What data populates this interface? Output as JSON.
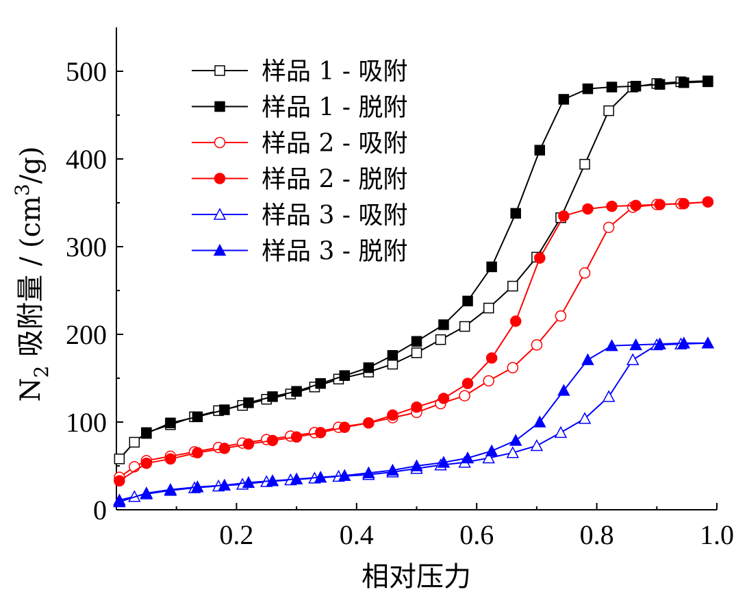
{
  "chart_data": {
    "type": "line",
    "xlabel": "相对压力",
    "ylabel_main": "N",
    "ylabel_sub": "2",
    "ylabel_rest": " 吸附量 / (cm",
    "ylabel_sup": "3",
    "ylabel_end": "/g)",
    "xlim": [
      0,
      1.0
    ],
    "ylim": [
      0,
      550
    ],
    "xticks": [
      0.2,
      0.4,
      0.6,
      0.8,
      1.0
    ],
    "xtick_labels": [
      "0.2",
      "0.4",
      "0.6",
      "0.8",
      "1.0"
    ],
    "yticks": [
      0,
      100,
      200,
      300,
      400,
      500
    ],
    "ytick_labels": [
      "0",
      "100",
      "200",
      "300",
      "400",
      "500"
    ],
    "grid": false,
    "legend_position": "top-left",
    "series": [
      {
        "name": "样品 1 - 吸附",
        "color": "#000000",
        "marker": "square",
        "filled": false,
        "x": [
          0.005,
          0.03,
          0.05,
          0.09,
          0.13,
          0.17,
          0.21,
          0.25,
          0.29,
          0.33,
          0.37,
          0.42,
          0.46,
          0.5,
          0.54,
          0.58,
          0.62,
          0.66,
          0.7,
          0.74,
          0.78,
          0.82,
          0.86,
          0.9,
          0.94,
          0.985
        ],
        "y": [
          58,
          77,
          88,
          97,
          106,
          113,
          119,
          126,
          132,
          140,
          149,
          157,
          166,
          179,
          194,
          209,
          230,
          255,
          288,
          333,
          394,
          455,
          482,
          486,
          488,
          489
        ]
      },
      {
        "name": "样品 1 - 脱附",
        "color": "#000000",
        "marker": "square",
        "filled": true,
        "x": [
          0.985,
          0.945,
          0.905,
          0.865,
          0.825,
          0.785,
          0.745,
          0.705,
          0.665,
          0.625,
          0.585,
          0.545,
          0.5,
          0.46,
          0.42,
          0.38,
          0.34,
          0.3,
          0.26,
          0.22,
          0.18,
          0.135,
          0.09,
          0.05
        ],
        "y": [
          488,
          487,
          485,
          483,
          482,
          480,
          468,
          410,
          338,
          277,
          238,
          211,
          192,
          176,
          162,
          153,
          144,
          135,
          129,
          122,
          114,
          106,
          99,
          87
        ]
      },
      {
        "name": "样品 2 - 吸附",
        "color": "#ff0000",
        "marker": "circle",
        "filled": false,
        "x": [
          0.005,
          0.03,
          0.05,
          0.09,
          0.13,
          0.17,
          0.21,
          0.25,
          0.29,
          0.33,
          0.37,
          0.42,
          0.46,
          0.5,
          0.54,
          0.58,
          0.62,
          0.66,
          0.7,
          0.74,
          0.78,
          0.82,
          0.86,
          0.9,
          0.94,
          0.985
        ],
        "y": [
          37,
          49,
          56,
          61,
          66,
          71,
          76,
          80,
          84,
          88,
          94,
          99,
          105,
          111,
          121,
          130,
          147,
          162,
          188,
          221,
          270,
          322,
          345,
          348,
          349,
          351
        ]
      },
      {
        "name": "样品 2 - 脱附",
        "color": "#ff0000",
        "marker": "circle",
        "filled": true,
        "x": [
          0.985,
          0.945,
          0.905,
          0.865,
          0.825,
          0.785,
          0.745,
          0.705,
          0.665,
          0.625,
          0.585,
          0.545,
          0.5,
          0.46,
          0.42,
          0.38,
          0.34,
          0.3,
          0.26,
          0.22,
          0.18,
          0.135,
          0.09,
          0.05,
          0.005
        ],
        "y": [
          351,
          349,
          348,
          347,
          346,
          343,
          335,
          287,
          215,
          173,
          144,
          127,
          117,
          108,
          99,
          94,
          88,
          83,
          79,
          75,
          70,
          65,
          58,
          53,
          33
        ]
      },
      {
        "name": "样品 3 - 吸附",
        "color": "#0000ff",
        "marker": "triangle",
        "filled": false,
        "x": [
          0.005,
          0.03,
          0.05,
          0.09,
          0.13,
          0.17,
          0.21,
          0.25,
          0.29,
          0.33,
          0.37,
          0.42,
          0.46,
          0.5,
          0.54,
          0.58,
          0.62,
          0.66,
          0.7,
          0.74,
          0.78,
          0.82,
          0.86,
          0.9,
          0.94,
          0.985
        ],
        "y": [
          11,
          15,
          18,
          22,
          25,
          27,
          29,
          32,
          34,
          36,
          38,
          40,
          43,
          47,
          51,
          54,
          59,
          65,
          73,
          88,
          104,
          129,
          171,
          188,
          189,
          190
        ]
      },
      {
        "name": "样品 3 - 脱附",
        "color": "#0000ff",
        "marker": "triangle",
        "filled": true,
        "x": [
          0.985,
          0.945,
          0.905,
          0.865,
          0.825,
          0.785,
          0.745,
          0.705,
          0.665,
          0.625,
          0.585,
          0.545,
          0.5,
          0.46,
          0.42,
          0.38,
          0.34,
          0.3,
          0.26,
          0.22,
          0.18,
          0.135,
          0.09,
          0.05,
          0.005
        ],
        "y": [
          190,
          190,
          189,
          188,
          187,
          171,
          136,
          100,
          79,
          67,
          59,
          54,
          50,
          45,
          42,
          39,
          37,
          35,
          33,
          31,
          28,
          26,
          23,
          19,
          9
        ]
      }
    ]
  }
}
